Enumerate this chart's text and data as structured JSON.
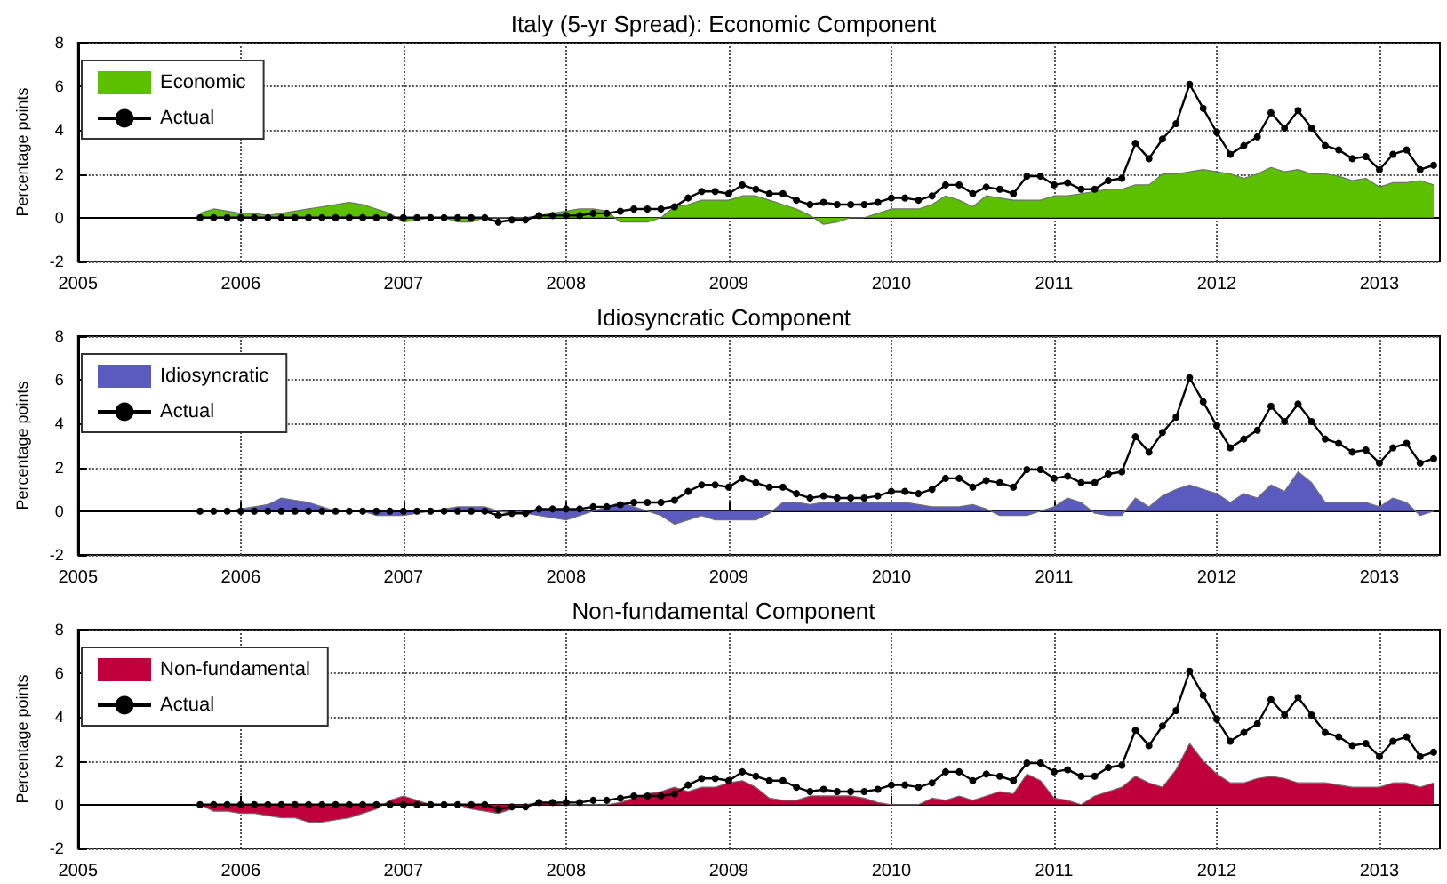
{
  "chart_data": [
    {
      "type": "area",
      "title": "Italy (5-yr Spread): Economic Component",
      "ylabel": "Percentage points",
      "x": [
        "2005-10",
        "2005-11",
        "2005-12",
        "2006-01",
        "2006-02",
        "2006-03",
        "2006-04",
        "2006-05",
        "2006-06",
        "2006-07",
        "2006-08",
        "2006-09",
        "2006-10",
        "2006-11",
        "2006-12",
        "2007-01",
        "2007-02",
        "2007-03",
        "2007-04",
        "2007-05",
        "2007-06",
        "2007-07",
        "2007-08",
        "2007-09",
        "2007-10",
        "2007-11",
        "2007-12",
        "2008-01",
        "2008-02",
        "2008-03",
        "2008-04",
        "2008-05",
        "2008-06",
        "2008-07",
        "2008-08",
        "2008-09",
        "2008-10",
        "2008-11",
        "2008-12",
        "2009-01",
        "2009-02",
        "2009-03",
        "2009-04",
        "2009-05",
        "2009-06",
        "2009-07",
        "2009-08",
        "2009-09",
        "2009-10",
        "2009-11",
        "2009-12",
        "2010-01",
        "2010-02",
        "2010-03",
        "2010-04",
        "2010-05",
        "2010-06",
        "2010-07",
        "2010-08",
        "2010-09",
        "2010-10",
        "2010-11",
        "2010-12",
        "2011-01",
        "2011-02",
        "2011-03",
        "2011-04",
        "2011-05",
        "2011-06",
        "2011-07",
        "2011-08",
        "2011-09",
        "2011-10",
        "2011-11",
        "2011-12",
        "2012-01",
        "2012-02",
        "2012-03",
        "2012-04",
        "2012-05",
        "2012-06",
        "2012-07",
        "2012-08",
        "2012-09",
        "2012-10",
        "2012-11",
        "2012-12",
        "2013-01",
        "2013-02",
        "2013-03",
        "2013-04",
        "2013-05"
      ],
      "series": [
        {
          "name": "Economic",
          "color": "#5cbf00",
          "values": [
            0.2,
            0.4,
            0.3,
            0.2,
            0.2,
            0.1,
            0.2,
            0.3,
            0.4,
            0.5,
            0.6,
            0.7,
            0.6,
            0.4,
            0.2,
            -0.2,
            -0.1,
            0,
            0,
            -0.2,
            -0.2,
            0,
            0,
            0,
            0,
            0.1,
            0.2,
            0.3,
            0.4,
            0.4,
            0.3,
            -0.2,
            -0.2,
            -0.2,
            0,
            0.5,
            0.6,
            0.8,
            0.8,
            0.8,
            1.0,
            1.0,
            0.8,
            0.6,
            0.4,
            0.1,
            -0.3,
            -0.2,
            0,
            0,
            0.2,
            0.4,
            0.4,
            0.4,
            0.6,
            1.0,
            0.8,
            0.5,
            1.0,
            0.9,
            0.8,
            0.8,
            0.8,
            1.0,
            1.0,
            1.1,
            1.2,
            1.3,
            1.3,
            1.5,
            1.5,
            2.0,
            2.0,
            2.1,
            2.2,
            2.1,
            2.0,
            1.8,
            2.0,
            2.3,
            2.1,
            2.2,
            2.0,
            2.0,
            1.9,
            1.7,
            1.8,
            1.4,
            1.6,
            1.6,
            1.7,
            1.5
          ]
        },
        {
          "name": "Actual",
          "type": "line",
          "color": "#000000",
          "marker": "circle",
          "values": [
            0,
            0,
            0,
            0,
            0,
            0,
            0,
            0,
            0,
            0,
            0,
            0,
            0,
            0,
            0,
            0,
            0,
            0,
            0,
            0,
            0,
            0,
            -0.2,
            -0.1,
            -0.1,
            0.1,
            0.1,
            0.1,
            0.1,
            0.2,
            0.2,
            0.3,
            0.4,
            0.4,
            0.4,
            0.5,
            0.9,
            1.2,
            1.2,
            1.1,
            1.5,
            1.3,
            1.1,
            1.1,
            0.8,
            0.6,
            0.7,
            0.6,
            0.6,
            0.6,
            0.7,
            0.9,
            0.9,
            0.8,
            1.0,
            1.5,
            1.5,
            1.1,
            1.4,
            1.3,
            1.1,
            1.9,
            1.9,
            1.5,
            1.6,
            1.3,
            1.3,
            1.7,
            1.8,
            3.4,
            2.7,
            3.6,
            4.3,
            6.1,
            5.0,
            3.9,
            2.9,
            3.3,
            3.7,
            4.8,
            4.1,
            4.9,
            4.1,
            3.3,
            3.1,
            2.7,
            2.8,
            2.2,
            2.9,
            3.1,
            2.2,
            2.4
          ]
        }
      ],
      "xlim": [
        "2005-01",
        "2013-05-15"
      ],
      "xticks": [
        "2005",
        "2006",
        "2007",
        "2008",
        "2009",
        "2010",
        "2011",
        "2012",
        "2013"
      ],
      "ylim": [
        -2,
        8
      ],
      "yticks": [
        -2,
        0,
        2,
        4,
        6,
        8
      ],
      "grid": true,
      "legend": "top left"
    },
    {
      "type": "area",
      "title": "Idiosyncratic Component",
      "ylabel": "Percentage points",
      "x": [
        "2005-10",
        "2005-11",
        "2005-12",
        "2006-01",
        "2006-02",
        "2006-03",
        "2006-04",
        "2006-05",
        "2006-06",
        "2006-07",
        "2006-08",
        "2006-09",
        "2006-10",
        "2006-11",
        "2006-12",
        "2007-01",
        "2007-02",
        "2007-03",
        "2007-04",
        "2007-05",
        "2007-06",
        "2007-07",
        "2007-08",
        "2007-09",
        "2007-10",
        "2007-11",
        "2007-12",
        "2008-01",
        "2008-02",
        "2008-03",
        "2008-04",
        "2008-05",
        "2008-06",
        "2008-07",
        "2008-08",
        "2008-09",
        "2008-10",
        "2008-11",
        "2008-12",
        "2009-01",
        "2009-02",
        "2009-03",
        "2009-04",
        "2009-05",
        "2009-06",
        "2009-07",
        "2009-08",
        "2009-09",
        "2009-10",
        "2009-11",
        "2009-12",
        "2010-01",
        "2010-02",
        "2010-03",
        "2010-04",
        "2010-05",
        "2010-06",
        "2010-07",
        "2010-08",
        "2010-09",
        "2010-10",
        "2010-11",
        "2010-12",
        "2011-01",
        "2011-02",
        "2011-03",
        "2011-04",
        "2011-05",
        "2011-06",
        "2011-07",
        "2011-08",
        "2011-09",
        "2011-10",
        "2011-11",
        "2011-12",
        "2012-01",
        "2012-02",
        "2012-03",
        "2012-04",
        "2012-05",
        "2012-06",
        "2012-07",
        "2012-08",
        "2012-09",
        "2012-10",
        "2012-11",
        "2012-12",
        "2013-01",
        "2013-02",
        "2013-03",
        "2013-04",
        "2013-05"
      ],
      "series": [
        {
          "name": "Idiosyncratic",
          "color": "#5b5bbf",
          "values": [
            0,
            0,
            0,
            0.1,
            0.2,
            0.3,
            0.6,
            0.5,
            0.4,
            0.2,
            0,
            0,
            0,
            -0.2,
            -0.2,
            -0.2,
            -0.1,
            0,
            0.1,
            0.2,
            0.2,
            0.2,
            0,
            -0.1,
            -0.1,
            -0.2,
            -0.3,
            -0.4,
            -0.2,
            0,
            0.2,
            0.4,
            0.2,
            0,
            -0.2,
            -0.6,
            -0.4,
            -0.2,
            -0.4,
            -0.4,
            -0.4,
            -0.4,
            -0.1,
            0.4,
            0.4,
            0.3,
            0.4,
            0.4,
            0.4,
            0.4,
            0.4,
            0.4,
            0.4,
            0.3,
            0.2,
            0.2,
            0.2,
            0.3,
            0.1,
            -0.2,
            -0.2,
            -0.2,
            0,
            0.2,
            0.6,
            0.4,
            -0.1,
            -0.2,
            -0.2,
            0.6,
            0.2,
            0.7,
            1.0,
            1.2,
            1.0,
            0.8,
            0.4,
            0.8,
            0.6,
            1.2,
            0.9,
            1.8,
            1.3,
            0.4,
            0.4,
            0.4,
            0.4,
            0.2,
            0.6,
            0.4,
            -0.2,
            0
          ]
        },
        {
          "name": "Actual",
          "type": "line",
          "color": "#000000",
          "marker": "circle",
          "values": [
            0,
            0,
            0,
            0,
            0,
            0,
            0,
            0,
            0,
            0,
            0,
            0,
            0,
            0,
            0,
            0,
            0,
            0,
            0,
            0,
            0,
            0,
            -0.2,
            -0.1,
            -0.1,
            0.1,
            0.1,
            0.1,
            0.1,
            0.2,
            0.2,
            0.3,
            0.4,
            0.4,
            0.4,
            0.5,
            0.9,
            1.2,
            1.2,
            1.1,
            1.5,
            1.3,
            1.1,
            1.1,
            0.8,
            0.6,
            0.7,
            0.6,
            0.6,
            0.6,
            0.7,
            0.9,
            0.9,
            0.8,
            1.0,
            1.5,
            1.5,
            1.1,
            1.4,
            1.3,
            1.1,
            1.9,
            1.9,
            1.5,
            1.6,
            1.3,
            1.3,
            1.7,
            1.8,
            3.4,
            2.7,
            3.6,
            4.3,
            6.1,
            5.0,
            3.9,
            2.9,
            3.3,
            3.7,
            4.8,
            4.1,
            4.9,
            4.1,
            3.3,
            3.1,
            2.7,
            2.8,
            2.2,
            2.9,
            3.1,
            2.2,
            2.4
          ]
        }
      ],
      "xlim": [
        "2005-01",
        "2013-05-15"
      ],
      "xticks": [
        "2005",
        "2006",
        "2007",
        "2008",
        "2009",
        "2010",
        "2011",
        "2012",
        "2013"
      ],
      "ylim": [
        -2,
        8
      ],
      "yticks": [
        -2,
        0,
        2,
        4,
        6,
        8
      ],
      "grid": true,
      "legend": "top left"
    },
    {
      "type": "area",
      "title": "Non-fundamental Component",
      "ylabel": "Percentage points",
      "x": [
        "2005-10",
        "2005-11",
        "2005-12",
        "2006-01",
        "2006-02",
        "2006-03",
        "2006-04",
        "2006-05",
        "2006-06",
        "2006-07",
        "2006-08",
        "2006-09",
        "2006-10",
        "2006-11",
        "2006-12",
        "2007-01",
        "2007-02",
        "2007-03",
        "2007-04",
        "2007-05",
        "2007-06",
        "2007-07",
        "2007-08",
        "2007-09",
        "2007-10",
        "2007-11",
        "2007-12",
        "2008-01",
        "2008-02",
        "2008-03",
        "2008-04",
        "2008-05",
        "2008-06",
        "2008-07",
        "2008-08",
        "2008-09",
        "2008-10",
        "2008-11",
        "2008-12",
        "2009-01",
        "2009-02",
        "2009-03",
        "2009-04",
        "2009-05",
        "2009-06",
        "2009-07",
        "2009-08",
        "2009-09",
        "2009-10",
        "2009-11",
        "2009-12",
        "2010-01",
        "2010-02",
        "2010-03",
        "2010-04",
        "2010-05",
        "2010-06",
        "2010-07",
        "2010-08",
        "2010-09",
        "2010-10",
        "2010-11",
        "2010-12",
        "2011-01",
        "2011-02",
        "2011-03",
        "2011-04",
        "2011-05",
        "2011-06",
        "2011-07",
        "2011-08",
        "2011-09",
        "2011-10",
        "2011-11",
        "2011-12",
        "2012-01",
        "2012-02",
        "2012-03",
        "2012-04",
        "2012-05",
        "2012-06",
        "2012-07",
        "2012-08",
        "2012-09",
        "2012-10",
        "2012-11",
        "2012-12",
        "2013-01",
        "2013-02",
        "2013-03",
        "2013-04",
        "2013-05"
      ],
      "series": [
        {
          "name": "Non-fundamental",
          "color": "#c0003c",
          "values": [
            0,
            -0.3,
            -0.3,
            -0.4,
            -0.4,
            -0.5,
            -0.6,
            -0.6,
            -0.8,
            -0.8,
            -0.7,
            -0.6,
            -0.4,
            -0.2,
            0.2,
            0.4,
            0.2,
            0,
            0,
            0,
            -0.2,
            -0.3,
            -0.4,
            -0.2,
            0,
            0.1,
            0.1,
            0,
            0,
            0,
            0,
            0.1,
            0.3,
            0.5,
            0.6,
            0.8,
            0.6,
            0.8,
            0.8,
            1.0,
            1.1,
            0.8,
            0.3,
            0.2,
            0.2,
            0.4,
            0.4,
            0.4,
            0.4,
            0.3,
            0.1,
            0,
            0,
            0,
            0.3,
            0.2,
            0.4,
            0.2,
            0.4,
            0.6,
            0.5,
            1.4,
            1.1,
            0.3,
            0.2,
            0,
            0.4,
            0.6,
            0.8,
            1.3,
            1.0,
            0.8,
            1.6,
            2.8,
            2.0,
            1.4,
            1.0,
            1.0,
            1.2,
            1.3,
            1.2,
            1.0,
            1.0,
            1.0,
            0.9,
            0.8,
            0.8,
            0.8,
            1.0,
            1.0,
            0.8,
            1.0
          ]
        },
        {
          "name": "Actual",
          "type": "line",
          "color": "#000000",
          "marker": "circle",
          "values": [
            0,
            0,
            0,
            0,
            0,
            0,
            0,
            0,
            0,
            0,
            0,
            0,
            0,
            0,
            0,
            0,
            0,
            0,
            0,
            0,
            0,
            0,
            -0.2,
            -0.1,
            -0.1,
            0.1,
            0.1,
            0.1,
            0.1,
            0.2,
            0.2,
            0.3,
            0.4,
            0.4,
            0.4,
            0.5,
            0.9,
            1.2,
            1.2,
            1.1,
            1.5,
            1.3,
            1.1,
            1.1,
            0.8,
            0.6,
            0.7,
            0.6,
            0.6,
            0.6,
            0.7,
            0.9,
            0.9,
            0.8,
            1.0,
            1.5,
            1.5,
            1.1,
            1.4,
            1.3,
            1.1,
            1.9,
            1.9,
            1.5,
            1.6,
            1.3,
            1.3,
            1.7,
            1.8,
            3.4,
            2.7,
            3.6,
            4.3,
            6.1,
            5.0,
            3.9,
            2.9,
            3.3,
            3.7,
            4.8,
            4.1,
            4.9,
            4.1,
            3.3,
            3.1,
            2.7,
            2.8,
            2.2,
            2.9,
            3.1,
            2.2,
            2.4
          ]
        }
      ],
      "xlim": [
        "2005-01",
        "2013-05-15"
      ],
      "xticks": [
        "2005",
        "2006",
        "2007",
        "2008",
        "2009",
        "2010",
        "2011",
        "2012",
        "2013"
      ],
      "ylim": [
        -2,
        8
      ],
      "yticks": [
        -2,
        0,
        2,
        4,
        6,
        8
      ],
      "grid": true,
      "legend": "top left"
    }
  ]
}
